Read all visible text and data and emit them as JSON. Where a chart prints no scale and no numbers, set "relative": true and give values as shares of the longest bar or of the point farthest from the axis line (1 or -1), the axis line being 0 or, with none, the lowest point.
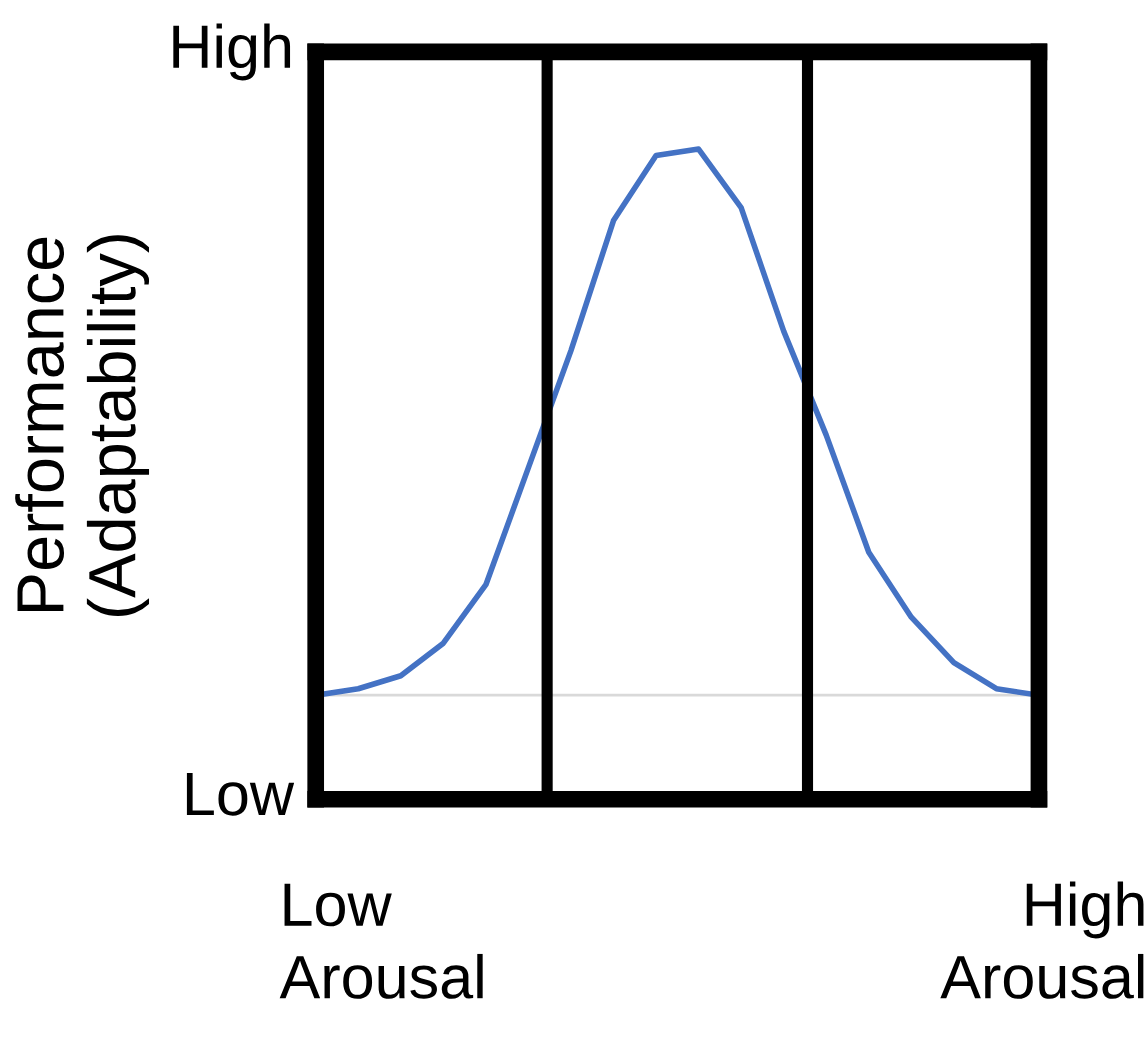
{
  "chart_data": {
    "type": "line",
    "ylabel": "Performance\n(Adaptability)",
    "relative": true,
    "categories": [
      null,
      null,
      null,
      null,
      null,
      null,
      null,
      null,
      null,
      null,
      null,
      null,
      null,
      null,
      null,
      null,
      null,
      null
    ],
    "series": [
      {
        "color": "#4472c4",
        "values": [
          0.16,
          0.17,
          0.19,
          0.24,
          0.33,
          0.51,
          0.69,
          0.89,
          0.99,
          1,
          0.91,
          0.72,
          0.56,
          0.38,
          0.28,
          0.21,
          0.17,
          0.16
        ]
      }
    ],
    "annotations": [
      "High",
      "Low",
      "Low\nArousal",
      "High\nArousal"
    ],
    "ref_lines": [
      {
        "axis": "y",
        "value": 0.16,
        "color": "#d9d9d9"
      }
    ],
    "legend": false,
    "marker": "none",
    "line_style": "solid"
  }
}
